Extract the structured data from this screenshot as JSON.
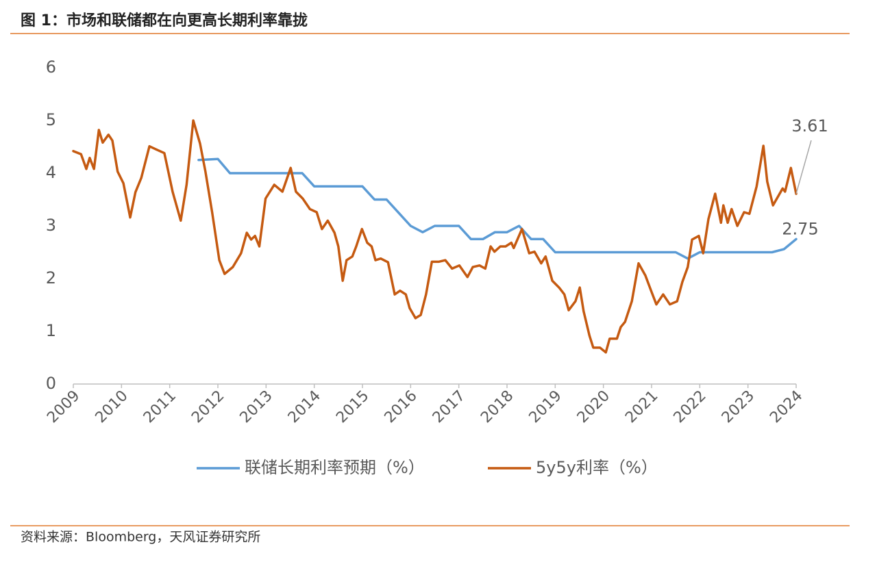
{
  "chart_data": {
    "type": "line",
    "title": "图 1：市场和联储都在向更高长期利率靠拢",
    "source": "资料来源：Bloomberg，天风证券研究所",
    "xlim": [
      2009,
      2024
    ],
    "xticks": [
      2009,
      2010,
      2011,
      2012,
      2013,
      2014,
      2015,
      2016,
      2017,
      2018,
      2019,
      2020,
      2021,
      2022,
      2023,
      2024
    ],
    "ylim": [
      0,
      6
    ],
    "yticks": [
      0,
      1,
      2,
      3,
      4,
      5,
      6
    ],
    "grid": false,
    "legend": "bottom",
    "series": [
      {
        "name": "联储长期利率预期（%）",
        "color": "#5b9bd5",
        "x": [
          2011.6,
          2012.0,
          2012.25,
          2012.5,
          2013.0,
          2013.75,
          2014.0,
          2014.5,
          2015.0,
          2015.25,
          2015.5,
          2015.75,
          2016.0,
          2016.25,
          2016.5,
          2016.75,
          2017.0,
          2017.25,
          2017.5,
          2017.75,
          2018.0,
          2018.25,
          2018.5,
          2018.75,
          2019.0,
          2019.5,
          2020.0,
          2021.0,
          2021.5,
          2021.75,
          2022.0,
          2022.5,
          2023.0,
          2023.5,
          2023.75,
          2024.0
        ],
        "values": [
          4.25,
          4.27,
          4.0,
          4.0,
          4.0,
          4.0,
          3.75,
          3.75,
          3.75,
          3.5,
          3.5,
          3.25,
          3.0,
          2.88,
          3.0,
          3.0,
          3.0,
          2.75,
          2.75,
          2.88,
          2.88,
          3.0,
          2.75,
          2.75,
          2.5,
          2.5,
          2.5,
          2.5,
          2.5,
          2.38,
          2.5,
          2.5,
          2.5,
          2.5,
          2.56,
          2.75
        ]
      },
      {
        "name": "5y5y利率（%）",
        "color": "#c55a11",
        "x": [
          2009.0,
          2009.16,
          2009.27,
          2009.34,
          2009.43,
          2009.53,
          2009.61,
          2009.73,
          2009.81,
          2009.92,
          2010.04,
          2010.18,
          2010.29,
          2010.41,
          2010.58,
          2010.72,
          2010.89,
          2011.06,
          2011.23,
          2011.35,
          2011.49,
          2011.63,
          2011.74,
          2011.88,
          2012.03,
          2012.14,
          2012.31,
          2012.48,
          2012.6,
          2012.69,
          2012.77,
          2012.86,
          2012.99,
          2013.17,
          2013.34,
          2013.51,
          2013.62,
          2013.76,
          2013.91,
          2014.05,
          2014.16,
          2014.28,
          2014.42,
          2014.5,
          2014.59,
          2014.67,
          2014.79,
          2014.87,
          2014.99,
          2015.1,
          2015.19,
          2015.27,
          2015.38,
          2015.53,
          2015.67,
          2015.78,
          2015.9,
          2015.98,
          2016.1,
          2016.21,
          2016.32,
          2016.44,
          2016.58,
          2016.72,
          2016.86,
          2017.01,
          2017.18,
          2017.29,
          2017.43,
          2017.55,
          2017.66,
          2017.74,
          2017.86,
          2017.97,
          2018.09,
          2018.14,
          2018.31,
          2018.46,
          2018.57,
          2018.71,
          2018.8,
          2018.94,
          2019.08,
          2019.19,
          2019.28,
          2019.42,
          2019.51,
          2019.59,
          2019.71,
          2019.79,
          2019.93,
          2020.05,
          2020.13,
          2020.28,
          2020.36,
          2020.45,
          2020.59,
          2020.73,
          2020.87,
          2020.99,
          2021.1,
          2021.24,
          2021.38,
          2021.53,
          2021.64,
          2021.75,
          2021.84,
          2021.98,
          2022.07,
          2022.18,
          2022.32,
          2022.44,
          2022.49,
          2022.58,
          2022.66,
          2022.78,
          2022.92,
          2023.03,
          2023.18,
          2023.32,
          2023.4,
          2023.52,
          2023.6,
          2023.72,
          2023.77,
          2023.89,
          2024.0
        ],
        "values": [
          4.42,
          4.36,
          4.08,
          4.29,
          4.08,
          4.82,
          4.58,
          4.73,
          4.62,
          4.03,
          3.81,
          3.16,
          3.64,
          3.91,
          4.51,
          4.45,
          4.38,
          3.65,
          3.1,
          3.78,
          5.0,
          4.56,
          4.04,
          3.26,
          2.35,
          2.09,
          2.22,
          2.48,
          2.87,
          2.74,
          2.81,
          2.61,
          3.52,
          3.78,
          3.65,
          4.1,
          3.65,
          3.52,
          3.32,
          3.26,
          2.94,
          3.1,
          2.87,
          2.61,
          1.96,
          2.35,
          2.42,
          2.61,
          2.94,
          2.68,
          2.61,
          2.35,
          2.38,
          2.31,
          1.7,
          1.77,
          1.7,
          1.44,
          1.25,
          1.31,
          1.7,
          2.32,
          2.32,
          2.35,
          2.19,
          2.25,
          2.03,
          2.22,
          2.25,
          2.19,
          2.61,
          2.51,
          2.61,
          2.61,
          2.68,
          2.58,
          2.94,
          2.48,
          2.51,
          2.29,
          2.42,
          1.96,
          1.83,
          1.7,
          1.4,
          1.57,
          1.83,
          1.38,
          0.92,
          0.69,
          0.69,
          0.6,
          0.86,
          0.86,
          1.08,
          1.18,
          1.57,
          2.29,
          2.06,
          1.77,
          1.51,
          1.7,
          1.51,
          1.57,
          1.94,
          2.22,
          2.74,
          2.81,
          2.48,
          3.13,
          3.61,
          3.06,
          3.39,
          3.06,
          3.32,
          3.0,
          3.26,
          3.23,
          3.75,
          4.52,
          3.84,
          3.39,
          3.52,
          3.71,
          3.65,
          4.1,
          3.61
        ]
      }
    ]
  }
}
